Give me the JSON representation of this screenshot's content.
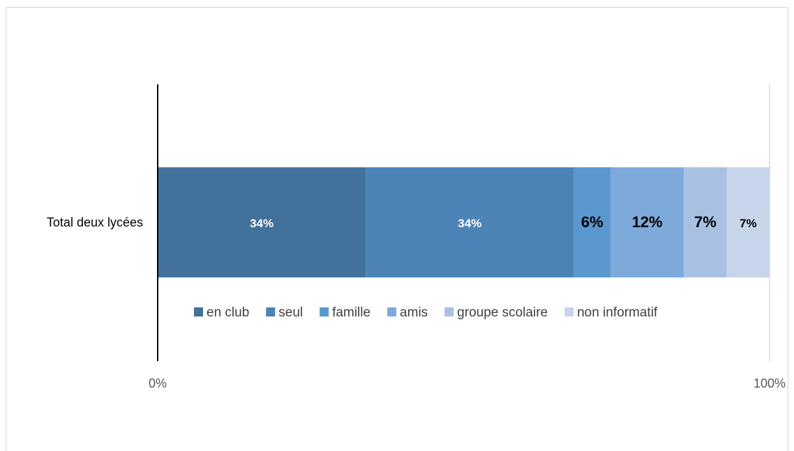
{
  "chart_data": {
    "type": "bar",
    "orientation": "horizontal",
    "stacked": "100%",
    "categories": [
      "Total deux lycées"
    ],
    "series": [
      {
        "name": "en club",
        "values": [
          0.34
        ],
        "label": "34%",
        "color": "#41719c"
      },
      {
        "name": "seul",
        "values": [
          0.34
        ],
        "label": "34%",
        "color": "#4d84b8"
      },
      {
        "name": "famille",
        "values": [
          0.06
        ],
        "label": "6%",
        "color": "#5b97cf"
      },
      {
        "name": "amis",
        "values": [
          0.12
        ],
        "label": "12%",
        "color": "#7eaadb"
      },
      {
        "name": "groupe scolaire",
        "values": [
          0.07
        ],
        "label": "7%",
        "color": "#a8c1e3"
      },
      {
        "name": "non informatif",
        "values": [
          0.07
        ],
        "label": "7%",
        "color": "#c7d5ea"
      }
    ],
    "x_ticks": [
      "0%",
      "100%"
    ],
    "xlim": [
      0,
      1
    ],
    "legend_position": "bottom",
    "gridlines": true
  }
}
